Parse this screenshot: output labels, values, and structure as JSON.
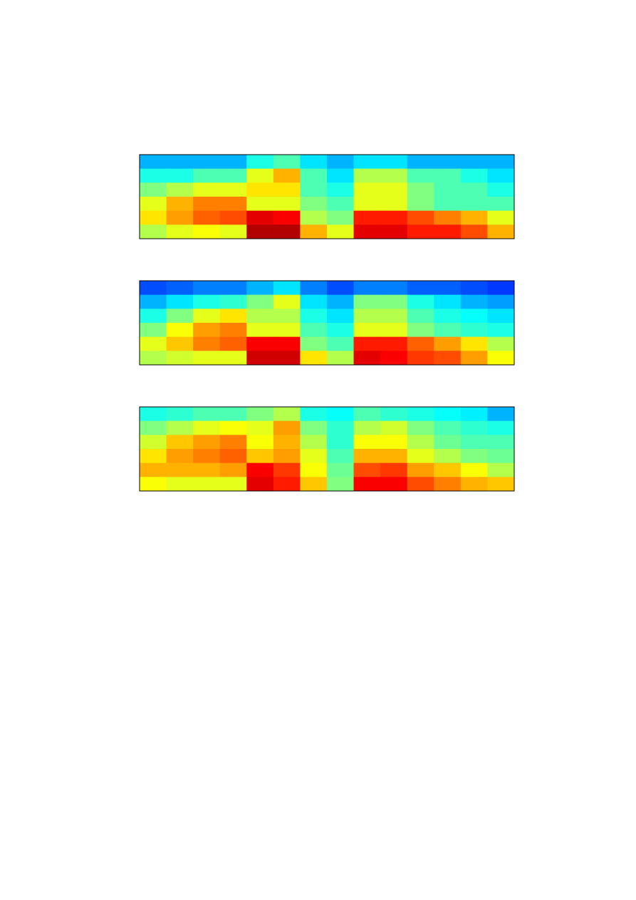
{
  "chart_data": [
    {
      "type": "heatmap",
      "colormap": "jet",
      "zlim": [
        0,
        1
      ],
      "values": [
        [
          0.3,
          0.3,
          0.3,
          0.3,
          0.4,
          0.45,
          0.35,
          0.3,
          0.35,
          0.35,
          0.3,
          0.3,
          0.3,
          0.3
        ],
        [
          0.4,
          0.4,
          0.45,
          0.45,
          0.6,
          0.7,
          0.45,
          0.35,
          0.55,
          0.55,
          0.45,
          0.45,
          0.4,
          0.35
        ],
        [
          0.5,
          0.55,
          0.6,
          0.6,
          0.65,
          0.65,
          0.45,
          0.4,
          0.6,
          0.6,
          0.5,
          0.45,
          0.45,
          0.4
        ],
        [
          0.6,
          0.7,
          0.75,
          0.75,
          0.6,
          0.6,
          0.5,
          0.45,
          0.6,
          0.6,
          0.5,
          0.45,
          0.45,
          0.45
        ],
        [
          0.65,
          0.72,
          0.78,
          0.8,
          0.9,
          0.88,
          0.55,
          0.5,
          0.85,
          0.85,
          0.8,
          0.75,
          0.7,
          0.6
        ],
        [
          0.55,
          0.6,
          0.62,
          0.6,
          0.95,
          0.95,
          0.7,
          0.6,
          0.9,
          0.9,
          0.85,
          0.85,
          0.8,
          0.7
        ]
      ]
    },
    {
      "type": "heatmap",
      "colormap": "jet",
      "zlim": [
        0,
        1
      ],
      "values": [
        [
          0.2,
          0.22,
          0.25,
          0.25,
          0.3,
          0.35,
          0.25,
          0.2,
          0.25,
          0.25,
          0.22,
          0.22,
          0.2,
          0.18
        ],
        [
          0.3,
          0.35,
          0.4,
          0.42,
          0.5,
          0.6,
          0.35,
          0.3,
          0.5,
          0.5,
          0.4,
          0.35,
          0.3,
          0.28
        ],
        [
          0.4,
          0.5,
          0.6,
          0.65,
          0.55,
          0.55,
          0.4,
          0.35,
          0.55,
          0.55,
          0.45,
          0.4,
          0.38,
          0.35
        ],
        [
          0.5,
          0.62,
          0.72,
          0.75,
          0.6,
          0.6,
          0.45,
          0.4,
          0.6,
          0.6,
          0.5,
          0.45,
          0.42,
          0.4
        ],
        [
          0.6,
          0.68,
          0.75,
          0.78,
          0.88,
          0.88,
          0.5,
          0.45,
          0.85,
          0.85,
          0.78,
          0.72,
          0.65,
          0.55
        ],
        [
          0.55,
          0.58,
          0.6,
          0.6,
          0.92,
          0.92,
          0.65,
          0.55,
          0.9,
          0.88,
          0.82,
          0.8,
          0.72,
          0.62
        ]
      ]
    },
    {
      "type": "heatmap",
      "colormap": "jet",
      "zlim": [
        0,
        1
      ],
      "values": [
        [
          0.4,
          0.42,
          0.45,
          0.45,
          0.5,
          0.55,
          0.4,
          0.38,
          0.45,
          0.42,
          0.4,
          0.38,
          0.36,
          0.3
        ],
        [
          0.5,
          0.55,
          0.6,
          0.62,
          0.6,
          0.72,
          0.5,
          0.42,
          0.55,
          0.58,
          0.5,
          0.45,
          0.42,
          0.4
        ],
        [
          0.58,
          0.68,
          0.72,
          0.75,
          0.62,
          0.7,
          0.55,
          0.42,
          0.62,
          0.62,
          0.55,
          0.48,
          0.45,
          0.45
        ],
        [
          0.65,
          0.72,
          0.75,
          0.78,
          0.68,
          0.72,
          0.6,
          0.45,
          0.7,
          0.7,
          0.6,
          0.55,
          0.5,
          0.48
        ],
        [
          0.7,
          0.7,
          0.7,
          0.72,
          0.88,
          0.82,
          0.62,
          0.48,
          0.8,
          0.82,
          0.72,
          0.68,
          0.62,
          0.55
        ],
        [
          0.62,
          0.6,
          0.6,
          0.6,
          0.9,
          0.85,
          0.68,
          0.5,
          0.88,
          0.88,
          0.8,
          0.75,
          0.7,
          0.68
        ]
      ]
    }
  ]
}
